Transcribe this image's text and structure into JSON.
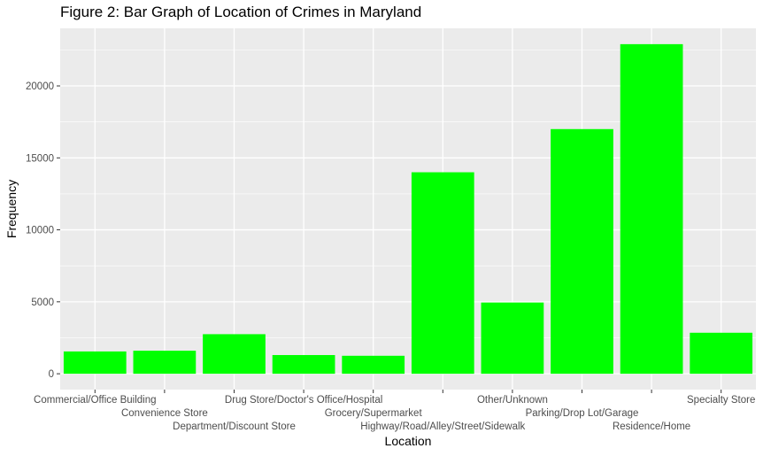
{
  "chart_data": {
    "type": "bar",
    "title": "Figure 2: Bar Graph of Location of Crimes in Maryland",
    "xlabel": "Location",
    "ylabel": "Frequency",
    "categories": [
      "Commercial/Office Building",
      "Convenience Store",
      "Department/Discount Store",
      "Drug Store/Doctor's Office/Hospital",
      "Grocery/Supermarket",
      "Highway/Road/Alley/Street/Sidewalk",
      "Other/Unknown",
      "Parking/Drop Lot/Garage",
      "Residence/Home",
      "Specialty Store"
    ],
    "values": [
      1550,
      1600,
      2750,
      1300,
      1250,
      14000,
      4950,
      17000,
      22900,
      2850
    ],
    "ylim": [
      -1100,
      24000
    ],
    "yticks": [
      0,
      5000,
      10000,
      15000,
      20000
    ],
    "ytick_labels": [
      "0",
      "5000",
      "10000",
      "15000",
      "20000"
    ],
    "grid": true,
    "bar_color": "#00ff00",
    "panel_background": "#ebebeb",
    "grid_color": "#ffffff"
  }
}
